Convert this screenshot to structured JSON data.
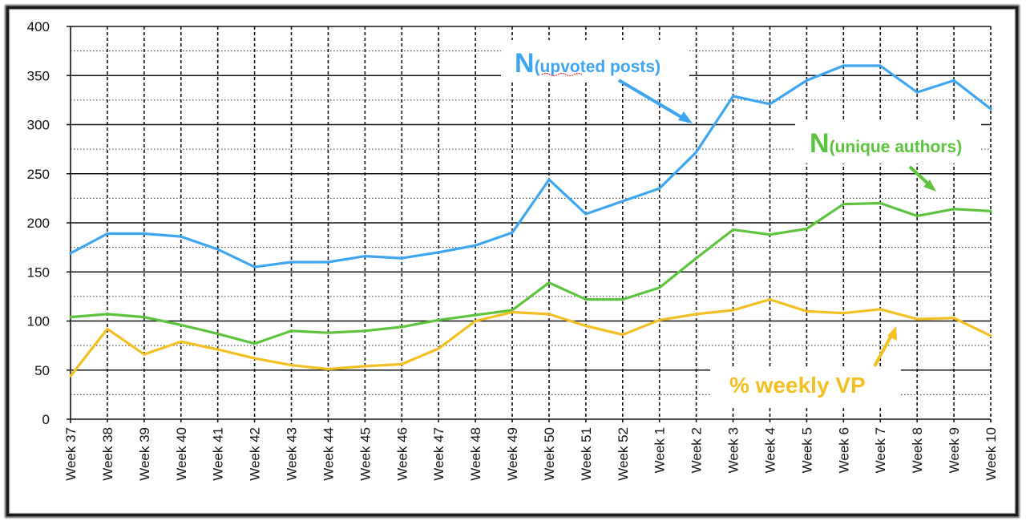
{
  "chart_data": {
    "type": "line",
    "categories": [
      "Week 37",
      "Week 38",
      "Week 39",
      "Week 40",
      "Week 41",
      "Week 42",
      "Week 43",
      "Week 44",
      "Week 45",
      "Week 46",
      "Week 47",
      "Week 48",
      "Week 49",
      "Week 50",
      "Week 51",
      "Week 52",
      "Week 1",
      "Week 2",
      "Week 3",
      "Week 4",
      "Week 5",
      "Week 6",
      "Week 7",
      "Week 8",
      "Week 9",
      "Week 10"
    ],
    "yticks": [
      "0",
      "50",
      "100",
      "150",
      "200",
      "250",
      "300",
      "350",
      "400"
    ],
    "ylim": [
      0,
      400
    ],
    "grid": true,
    "series": [
      {
        "color": "#3ea6f0",
        "values": [
          169,
          189,
          189,
          186,
          173,
          155,
          160,
          160,
          166,
          164,
          170,
          177,
          190,
          244,
          209,
          222,
          235,
          272,
          329,
          321,
          345,
          360,
          360,
          333,
          345,
          316
        ]
      },
      {
        "color": "#5cc43c",
        "values": [
          104,
          107,
          104,
          96,
          87,
          77,
          90,
          88,
          90,
          94,
          101,
          106,
          111,
          139,
          122,
          122,
          134,
          164,
          193,
          188,
          194,
          219,
          220,
          207,
          214,
          212
        ]
      },
      {
        "color": "#f4bf21",
        "values": [
          44,
          92,
          66,
          79,
          71,
          62,
          55,
          51,
          54,
          56,
          72,
          100,
          109,
          107,
          95,
          86,
          101,
          107,
          111,
          122,
          110,
          108,
          112,
          102,
          103,
          85
        ]
      }
    ],
    "annotations": [
      {
        "n": "N",
        "sub": "(upvoted posts)",
        "color": "#3ea6f0"
      },
      {
        "n": "N",
        "sub": "(unique authors)",
        "color": "#5cc43c"
      },
      {
        "text": "% weekly VP",
        "color": "#f4bf21"
      }
    ]
  }
}
